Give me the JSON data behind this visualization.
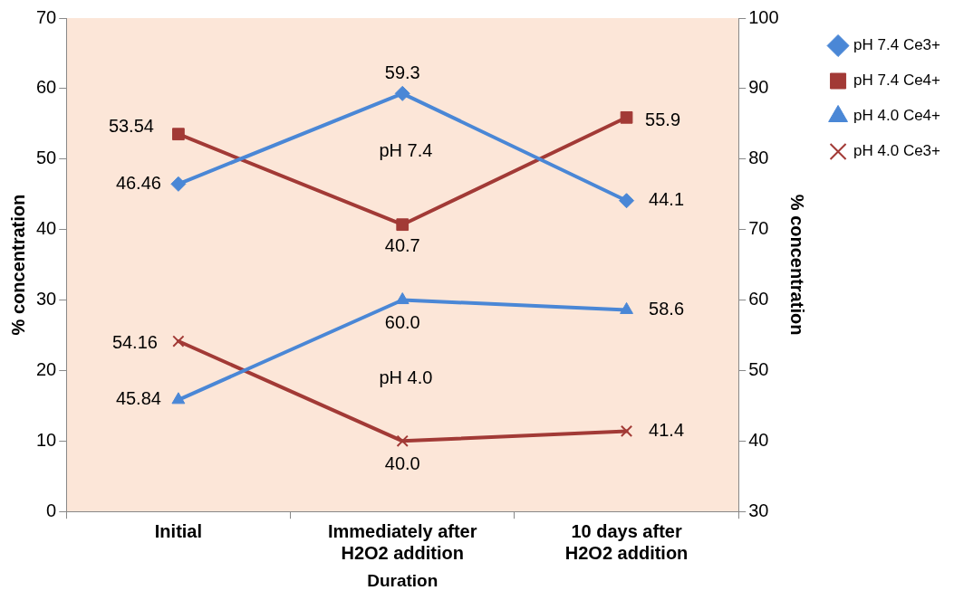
{
  "chart_data": {
    "type": "line",
    "xlabel": "Duration",
    "ylabel": "% concentration",
    "y2label": "% concentration",
    "categories": [
      "Initial",
      "Immediately after H2O2 addition",
      "10 days after H2O2 addition"
    ],
    "series": [
      {
        "name": "pH 7.4 Ce3+",
        "color": "#4a87d6",
        "marker": "diamond",
        "values": [
          46.46,
          59.3,
          44.1
        ],
        "value_labels": [
          "46.46",
          "59.3",
          "44.1"
        ]
      },
      {
        "name": "pH 7.4 Ce4+",
        "color": "#a23a36",
        "marker": "square",
        "values": [
          53.54,
          40.7,
          55.9
        ],
        "value_labels": [
          "53.54",
          "40.7",
          "55.9"
        ]
      },
      {
        "name": "pH 4.0 Ce4+",
        "color": "#4a87d6",
        "marker": "triangle",
        "axis": "y2",
        "values": [
          45.84,
          60.0,
          58.6
        ],
        "value_labels": [
          "45.84",
          "60.0",
          "58.6"
        ]
      },
      {
        "name": "pH 4.0 Ce3+",
        "color": "#a23a36",
        "marker": "cross",
        "axis": "y2",
        "values": [
          54.16,
          40.0,
          41.4
        ],
        "value_labels": [
          "54.16",
          "40.0",
          "41.4"
        ]
      }
    ],
    "ylim": [
      0,
      70
    ],
    "yticks": [
      0,
      10,
      20,
      30,
      40,
      50,
      60,
      70
    ],
    "y2lim": [
      30,
      100
    ],
    "y2ticks": [
      30,
      40,
      50,
      60,
      70,
      80,
      90,
      100
    ],
    "annotations": [
      "pH 7.4",
      "pH 4.0"
    ],
    "grid": false,
    "legend": "top right",
    "line_style": "solid"
  }
}
